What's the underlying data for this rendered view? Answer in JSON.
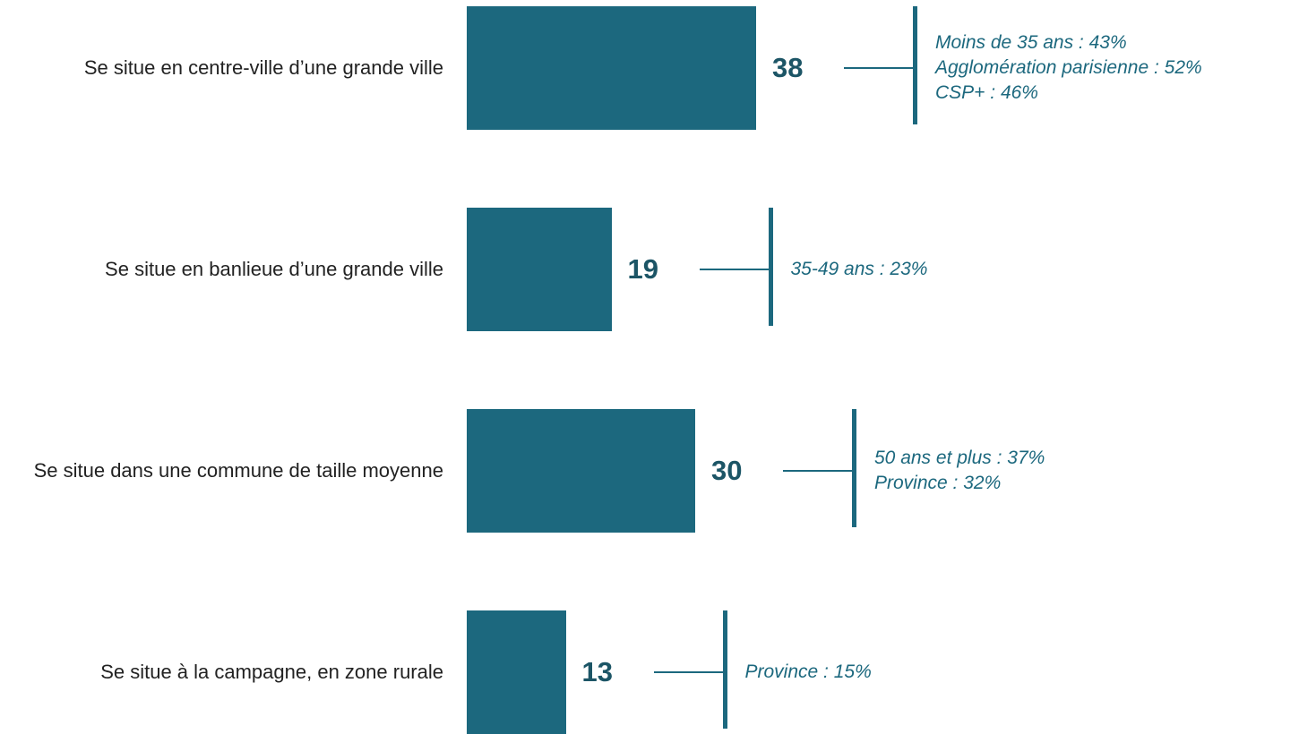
{
  "chart_data": {
    "type": "bar",
    "orientation": "horizontal",
    "color": "#1c687e",
    "categories": [
      "Se situe en centre-ville d’une grande ville",
      "Se situe en banlieue d’une grande ville",
      "Se situe dans une commune de taille moyenne",
      "Se situe à la campagne, en zone rurale"
    ],
    "values": [
      38,
      19,
      30,
      13
    ],
    "annotations": [
      [
        "Moins de 35 ans : 43%",
        "Agglomération parisienne : 52%",
        "CSP+ : 46%"
      ],
      [
        "35-49 ans : 23%"
      ],
      [
        "50 ans et plus : 37%",
        "Province : 32%"
      ],
      [
        "Province : 15%"
      ]
    ]
  }
}
